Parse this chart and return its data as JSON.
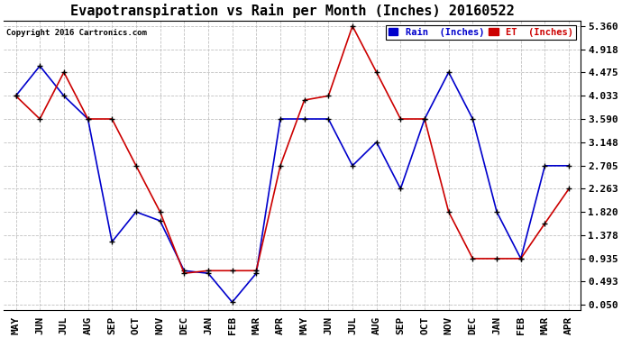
{
  "title": "Evapotranspiration vs Rain per Month (Inches) 20160522",
  "copyright": "Copyright 2016 Cartronics.com",
  "legend_rain": "Rain  (Inches)",
  "legend_et": "ET  (Inches)",
  "months": [
    "MAY",
    "JUN",
    "JUL",
    "AUG",
    "SEP",
    "OCT",
    "NOV",
    "DEC",
    "JAN",
    "FEB",
    "MAR",
    "APR",
    "MAY",
    "JUN",
    "JUL",
    "AUG",
    "SEP",
    "OCT",
    "NOV",
    "DEC",
    "JAN",
    "FEB",
    "MAR",
    "APR"
  ],
  "rain_values": [
    4.03,
    4.6,
    4.03,
    3.59,
    1.25,
    1.82,
    1.65,
    0.7,
    0.65,
    0.1,
    0.65,
    3.59,
    3.59,
    3.59,
    2.7,
    3.15,
    2.26,
    3.59,
    4.48,
    3.59,
    1.82,
    0.93,
    2.7,
    2.7
  ],
  "et_values": [
    4.03,
    3.59,
    4.48,
    3.59,
    3.59,
    2.7,
    1.82,
    0.65,
    0.7,
    0.7,
    0.7,
    2.7,
    3.95,
    4.03,
    5.36,
    4.48,
    3.59,
    3.59,
    1.82,
    0.93,
    0.93,
    0.93,
    1.6,
    2.26
  ],
  "yticks": [
    0.05,
    0.493,
    0.935,
    1.378,
    1.82,
    2.263,
    2.705,
    3.148,
    3.59,
    4.033,
    4.475,
    4.918,
    5.36
  ],
  "ymin": 0.05,
  "ymax": 5.36,
  "rain_color": "#0000cc",
  "et_color": "#cc0000",
  "background_color": "#ffffff",
  "grid_color": "#c0c0c0",
  "title_fontsize": 11,
  "tick_fontsize": 8,
  "marker_color": "#000000",
  "fig_width": 6.9,
  "fig_height": 3.75,
  "dpi": 100
}
